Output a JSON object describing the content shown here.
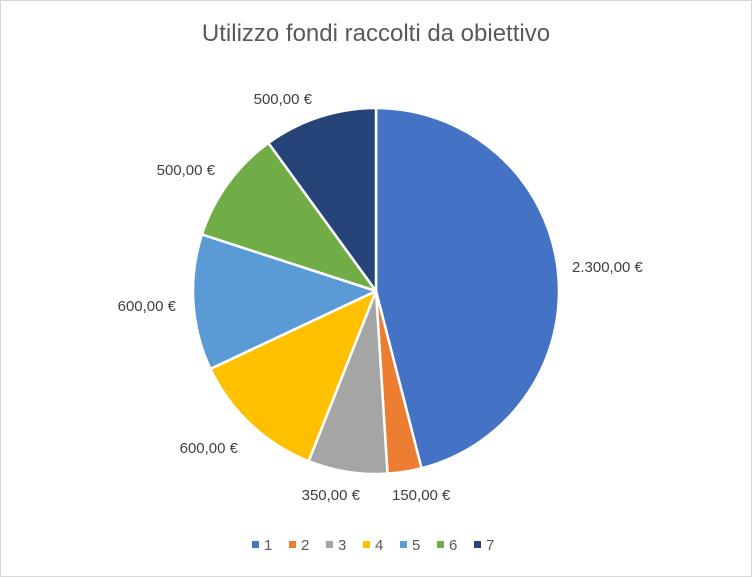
{
  "chart_data": {
    "type": "pie",
    "title": "Utilizzo fondi raccolti da obiettivo",
    "legend_position": "bottom",
    "categories": [
      "1",
      "2",
      "3",
      "4",
      "5",
      "6",
      "7"
    ],
    "values": [
      2300,
      150,
      350,
      600,
      600,
      500,
      500
    ],
    "value_labels": [
      "2.300,00 €",
      "150,00 €",
      "350,00 €",
      "600,00 €",
      "600,00 €",
      "500,00 €",
      "500,00 €"
    ],
    "colors": [
      "#4472C4",
      "#ED7D31",
      "#A5A5A5",
      "#FFC000",
      "#5B9BD5",
      "#70AD47",
      "#264478"
    ]
  }
}
